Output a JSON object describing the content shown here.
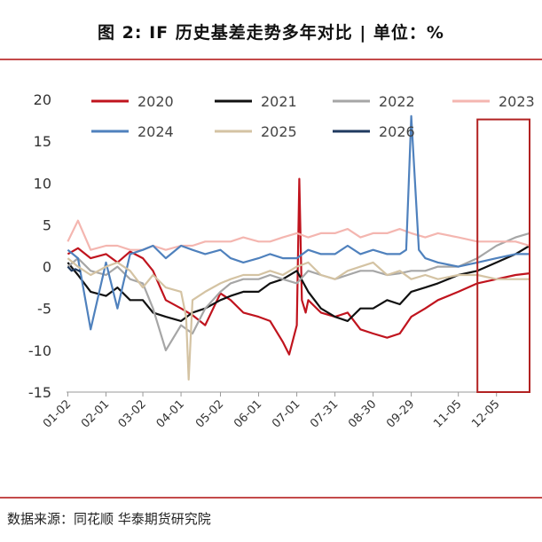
{
  "header": {
    "title": "图 2: IF 历史基差走势多年对比 | 单位：%"
  },
  "footer": {
    "source": "数据来源：同花顺 华泰期货研究院"
  },
  "chart_data": {
    "type": "line",
    "title": "图 2: IF 历史基差走势多年对比 | 单位：%",
    "xlabel": "",
    "ylabel": "",
    "ylim": [
      -15,
      20
    ],
    "yticks": [
      -15,
      -10,
      -5,
      0,
      5,
      10,
      15,
      20
    ],
    "xticks": [
      "01-02",
      "02-01",
      "03-02",
      "04-01",
      "05-02",
      "06-01",
      "07-01",
      "07-31",
      "08-30",
      "09-29",
      "11-05",
      "12-05"
    ],
    "legend_position": "top",
    "highlight_box": {
      "x_from": "11-20",
      "x_to": "12-31",
      "y_from": -15,
      "y_to": 17.6,
      "color": "#b22222"
    },
    "series": [
      {
        "name": "2020",
        "color": "#c0141e",
        "x": [
          "01-02",
          "01-10",
          "01-20",
          "02-01",
          "02-10",
          "02-20",
          "03-02",
          "03-10",
          "03-20",
          "04-01",
          "04-10",
          "04-20",
          "05-02",
          "05-10",
          "05-20",
          "06-01",
          "06-10",
          "06-20",
          "06-25",
          "07-01",
          "07-03",
          "07-05",
          "07-08",
          "07-10",
          "07-20",
          "07-31",
          "08-10",
          "08-20",
          "08-30",
          "09-10",
          "09-20",
          "09-29",
          "10-10",
          "10-20",
          "11-05",
          "11-20",
          "12-05",
          "12-20",
          "12-31"
        ],
        "y": [
          1.5,
          2.2,
          1.0,
          1.5,
          0.5,
          1.8,
          1.0,
          -0.5,
          -4.0,
          -5.0,
          -5.8,
          -7.0,
          -3.2,
          -4.0,
          -5.5,
          -6.0,
          -6.5,
          -9.0,
          -10.5,
          -7.0,
          10.5,
          -4.0,
          -5.5,
          -4.0,
          -5.5,
          -6.0,
          -5.5,
          -7.5,
          -8.0,
          -8.5,
          -8.0,
          -6.0,
          -5.0,
          -4.0,
          -3.0,
          -2.0,
          -1.5,
          -1.0,
          -0.8
        ]
      },
      {
        "name": "2021",
        "color": "#111111",
        "x": [
          "01-02",
          "01-10",
          "01-20",
          "02-01",
          "02-10",
          "02-20",
          "03-02",
          "03-10",
          "03-20",
          "04-01",
          "04-10",
          "04-20",
          "05-02",
          "05-10",
          "05-20",
          "06-01",
          "06-10",
          "06-20",
          "07-01",
          "07-10",
          "07-20",
          "07-31",
          "08-10",
          "08-20",
          "08-30",
          "09-10",
          "09-20",
          "09-29",
          "10-10",
          "10-20",
          "11-05",
          "11-20",
          "12-05",
          "12-20",
          "12-31"
        ],
        "y": [
          0.5,
          -1.0,
          -3.0,
          -3.5,
          -2.5,
          -4.0,
          -4.0,
          -5.5,
          -6.0,
          -6.5,
          -5.5,
          -5.0,
          -4.0,
          -3.5,
          -3.0,
          -3.0,
          -2.0,
          -1.5,
          -0.5,
          -3.0,
          -5.0,
          -6.0,
          -6.5,
          -5.0,
          -5.0,
          -4.0,
          -4.5,
          -3.0,
          -2.5,
          -2.0,
          -1.0,
          -0.5,
          0.5,
          1.5,
          2.5
        ]
      },
      {
        "name": "2022",
        "color": "#a6a6a6",
        "x": [
          "01-02",
          "01-10",
          "01-20",
          "02-01",
          "02-10",
          "02-20",
          "03-02",
          "03-10",
          "03-20",
          "04-01",
          "04-10",
          "04-20",
          "05-02",
          "05-10",
          "05-20",
          "06-01",
          "06-10",
          "06-20",
          "07-01",
          "07-10",
          "07-20",
          "07-31",
          "08-10",
          "08-20",
          "08-30",
          "09-10",
          "09-20",
          "09-29",
          "10-10",
          "10-20",
          "11-05",
          "11-20",
          "12-05",
          "12-20",
          "12-31"
        ],
        "y": [
          0.0,
          1.0,
          -0.5,
          -1.0,
          0.0,
          -1.5,
          -2.0,
          -5.0,
          -10.0,
          -7.0,
          -8.0,
          -5.0,
          -3.0,
          -2.0,
          -1.5,
          -1.5,
          -1.0,
          -1.5,
          -2.0,
          -0.5,
          -1.0,
          -1.5,
          -1.0,
          -0.5,
          -0.5,
          -1.0,
          -0.8,
          -0.5,
          -0.5,
          0.0,
          0.0,
          1.0,
          2.5,
          3.5,
          4.0
        ]
      },
      {
        "name": "2023",
        "color": "#f4b6b0",
        "x": [
          "01-02",
          "01-10",
          "01-20",
          "02-01",
          "02-10",
          "02-20",
          "03-02",
          "03-10",
          "03-20",
          "04-01",
          "04-10",
          "04-20",
          "05-02",
          "05-10",
          "05-20",
          "06-01",
          "06-10",
          "06-20",
          "07-01",
          "07-10",
          "07-20",
          "07-31",
          "08-10",
          "08-20",
          "08-30",
          "09-10",
          "09-20",
          "09-29",
          "10-10",
          "10-20",
          "11-05",
          "11-20",
          "12-05",
          "12-20",
          "12-31"
        ],
        "y": [
          3.0,
          5.5,
          2.0,
          2.5,
          2.5,
          2.0,
          2.0,
          2.5,
          2.0,
          2.5,
          2.5,
          3.0,
          3.0,
          3.0,
          3.5,
          3.0,
          3.0,
          3.5,
          4.0,
          3.5,
          4.0,
          4.0,
          4.5,
          3.5,
          4.0,
          4.0,
          4.5,
          4.0,
          3.5,
          4.0,
          3.5,
          3.0,
          3.0,
          3.0,
          2.5
        ]
      },
      {
        "name": "2024",
        "color": "#4f81bd",
        "x": [
          "01-02",
          "01-10",
          "01-20",
          "02-01",
          "02-10",
          "02-20",
          "03-02",
          "03-10",
          "03-20",
          "04-01",
          "04-10",
          "04-20",
          "05-02",
          "05-10",
          "05-20",
          "06-01",
          "06-10",
          "06-20",
          "07-01",
          "07-10",
          "07-20",
          "07-31",
          "08-10",
          "08-20",
          "08-30",
          "09-10",
          "09-20",
          "09-25",
          "09-27",
          "09-29",
          "10-05",
          "10-10",
          "10-20",
          "11-05",
          "11-20",
          "12-05",
          "12-20",
          "12-31"
        ],
        "y": [
          2.0,
          1.0,
          -7.5,
          0.5,
          -5.0,
          1.5,
          2.0,
          2.5,
          1.0,
          2.5,
          2.0,
          1.5,
          2.0,
          1.0,
          0.5,
          1.0,
          1.5,
          1.0,
          1.0,
          2.0,
          1.5,
          1.5,
          2.5,
          1.5,
          2.0,
          1.5,
          1.5,
          2.0,
          10.0,
          18.0,
          2.0,
          1.0,
          0.5,
          0.0,
          0.5,
          1.0,
          1.5,
          1.5
        ]
      },
      {
        "name": "2025",
        "color": "#d4c3a3",
        "x": [
          "01-02",
          "01-10",
          "01-20",
          "02-01",
          "02-10",
          "02-20",
          "03-02",
          "03-10",
          "03-20",
          "04-01",
          "04-05",
          "04-07",
          "04-10",
          "04-20",
          "05-02",
          "05-10",
          "05-20",
          "06-01",
          "06-10",
          "06-20",
          "07-01",
          "07-10",
          "07-20",
          "07-31",
          "08-10",
          "08-20",
          "08-30",
          "09-10",
          "09-20",
          "09-29",
          "10-10",
          "10-20",
          "11-05",
          "11-20",
          "12-05",
          "12-20",
          "12-31"
        ],
        "y": [
          1.0,
          0.0,
          -1.0,
          0.0,
          0.5,
          -0.5,
          -2.5,
          -1.0,
          -2.5,
          -3.0,
          -6.0,
          -13.5,
          -4.0,
          -3.0,
          -2.0,
          -1.5,
          -1.0,
          -1.0,
          -0.5,
          -1.0,
          0.0,
          0.5,
          -1.0,
          -1.5,
          -0.5,
          0.0,
          0.5,
          -1.0,
          -0.5,
          -1.5,
          -1.0,
          -1.5,
          -1.0,
          -1.0,
          -1.5,
          -1.5,
          -1.5
        ]
      },
      {
        "name": "2026",
        "color": "#1f3a5f",
        "x": [
          "01-02",
          "01-05",
          "01-08",
          "01-12"
        ],
        "y": [
          0.0,
          -0.5,
          -0.3,
          -0.6
        ]
      }
    ]
  }
}
